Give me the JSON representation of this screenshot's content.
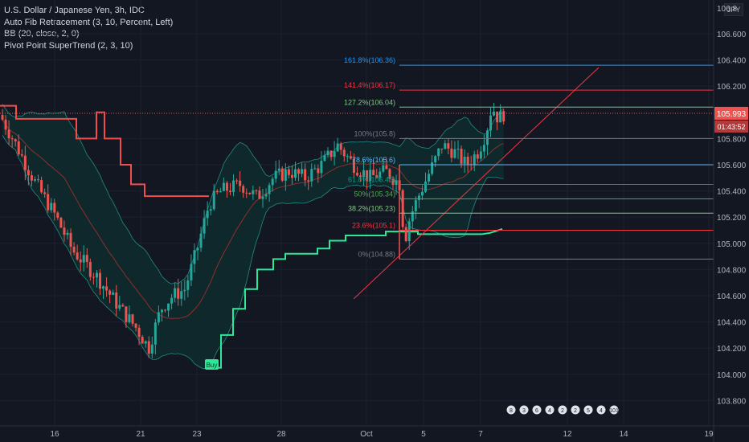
{
  "legend": {
    "title": "U.S. Dollar / Japanese Yen, 3h, IDC",
    "line1": "Auto Fib Retracement (3, 10, Percent, Left)",
    "line2": "BB (20, close, 2, 0)",
    "line3": "Pivot Point SuperTrend (2, 3, 10)"
  },
  "currency_badge": "JPY",
  "colors": {
    "background": "#131722",
    "grid": "#1c2030",
    "up_candle": "#26a69a",
    "down_candle": "#ef5350",
    "bb_fill": "#0f2a2c",
    "bb_band": "#26a69a",
    "bb_basis": "#8e2f2f",
    "supertrend_up": "#2ee89a",
    "supertrend_down": "#f24d4d",
    "price_line": "#ef5350"
  },
  "chart_data": {
    "type": "candlestick",
    "symbol": "USDJPY",
    "timeframe": "3h",
    "ylim": [
      103.7,
      106.8
    ],
    "y_ticks": [
      "106.600",
      "106.400",
      "106.200",
      "105.800",
      "105.600",
      "105.400",
      "105.200",
      "105.000",
      "104.800",
      "104.600",
      "104.400",
      "104.200",
      "104.000",
      "103.800"
    ],
    "x_ticks": [
      "16",
      "21",
      "23",
      "28",
      "Oct",
      "5",
      "7",
      "12",
      "14",
      "19"
    ],
    "y_top_label": "106.8",
    "last_price": "105.993",
    "countdown": "01:43:52",
    "fib_levels": [
      {
        "label": "161.8%(106.36)",
        "value": 106.36,
        "color": "#2196f3"
      },
      {
        "label": "141.4%(106.17)",
        "value": 106.17,
        "color": "#f23645"
      },
      {
        "label": "127.2%(106.04)",
        "value": 106.04,
        "color": "#81c784"
      },
      {
        "label": "100%(105.8)",
        "value": 105.8,
        "color": "#787b86"
      },
      {
        "label": "78.6%(105.6)",
        "value": 105.6,
        "color": "#64b5f6"
      },
      {
        "label": "61.8%(105.45)",
        "value": 105.45,
        "color": "#089981"
      },
      {
        "label": "50%(105.34)",
        "value": 105.34,
        "color": "#4caf50"
      },
      {
        "label": "38.2%(105.23)",
        "value": 105.23,
        "color": "#81c784"
      },
      {
        "label": "23.6%(105.1)",
        "value": 105.1,
        "color": "#f23645"
      },
      {
        "label": "0%(104.88)",
        "value": 104.88,
        "color": "#787b86"
      }
    ],
    "buy_label": "Buy",
    "event_badges": [
      "8",
      "3",
      "6",
      "4",
      "2",
      "2",
      "5",
      "4",
      "101"
    ]
  }
}
